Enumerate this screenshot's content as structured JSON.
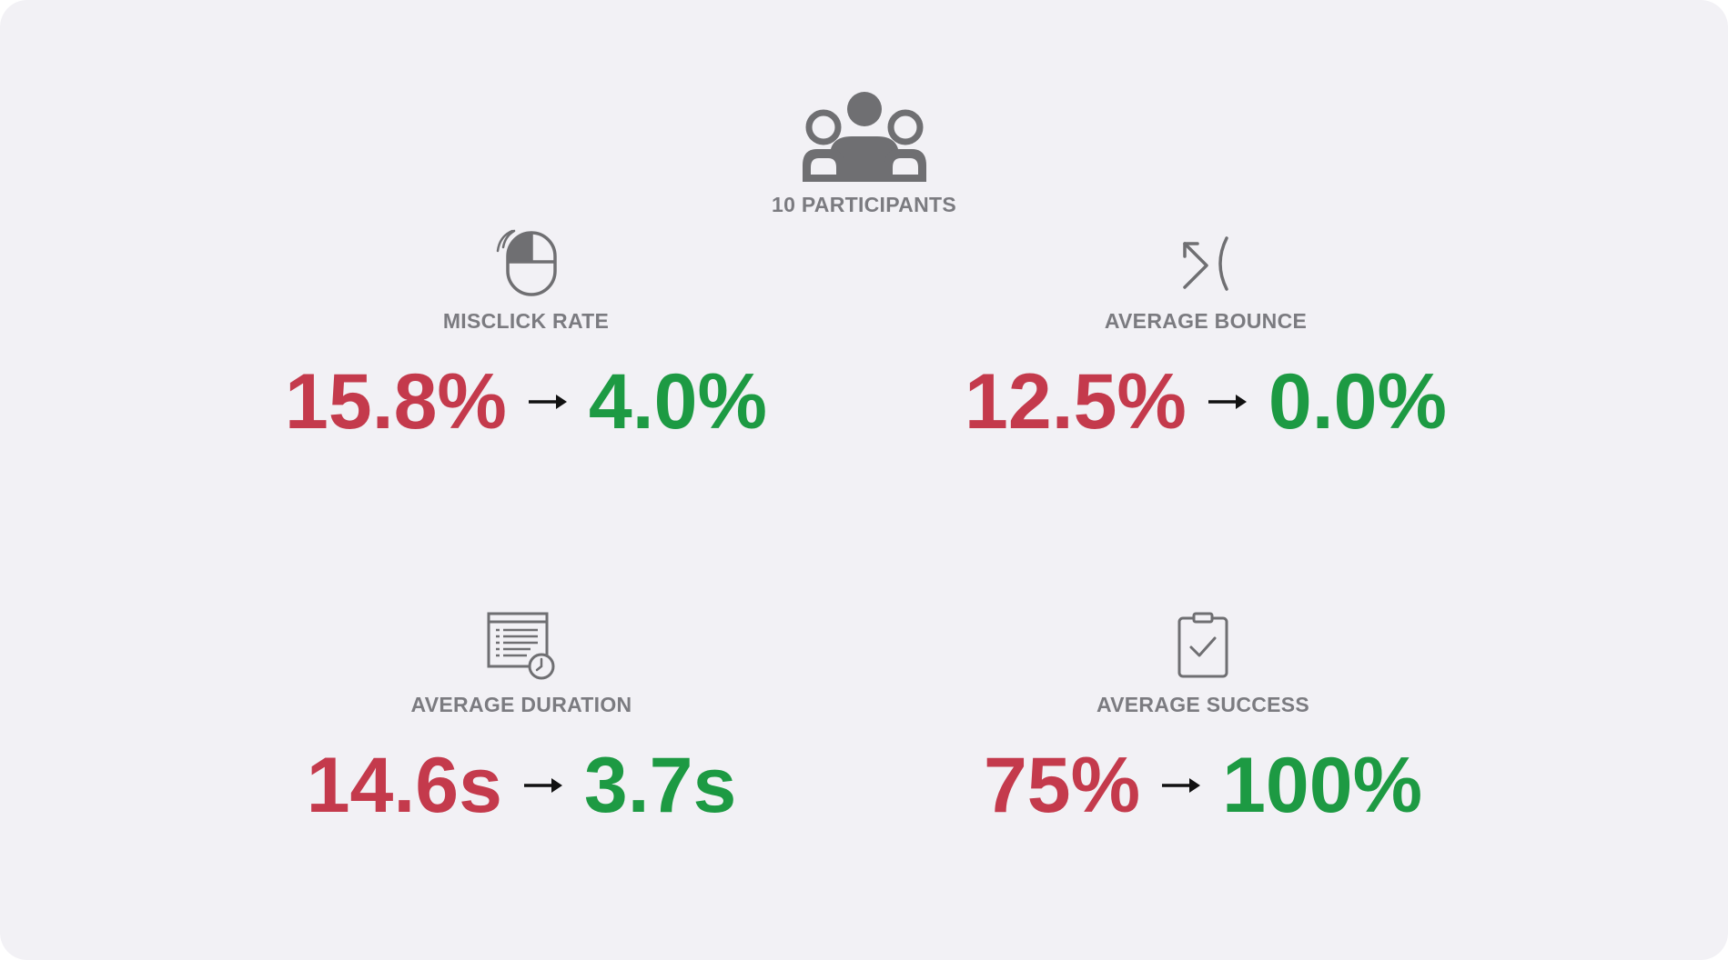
{
  "participants": {
    "icon": "group-people-icon",
    "label": "10 PARTICIPANTS"
  },
  "colors": {
    "background": "#f2f1f5",
    "label": "#7b7b80",
    "before": "#c43a4c",
    "after": "#1d9a43",
    "icon": "#6f6f72"
  },
  "metrics": {
    "misclick": {
      "icon": "mouse-click-icon",
      "label": "MISCLICK RATE",
      "before": "15.8%",
      "after": "4.0%"
    },
    "bounce": {
      "icon": "bounce-arrow-icon",
      "label": "AVERAGE BOUNCE",
      "before": "12.5%",
      "after": "0.0%"
    },
    "duration": {
      "icon": "document-clock-icon",
      "label": "AVERAGE DURATION",
      "before": "14.6s",
      "after": "3.7s"
    },
    "success": {
      "icon": "clipboard-check-icon",
      "label": "AVERAGE SUCCESS",
      "before": "75%",
      "after": "100%"
    }
  }
}
